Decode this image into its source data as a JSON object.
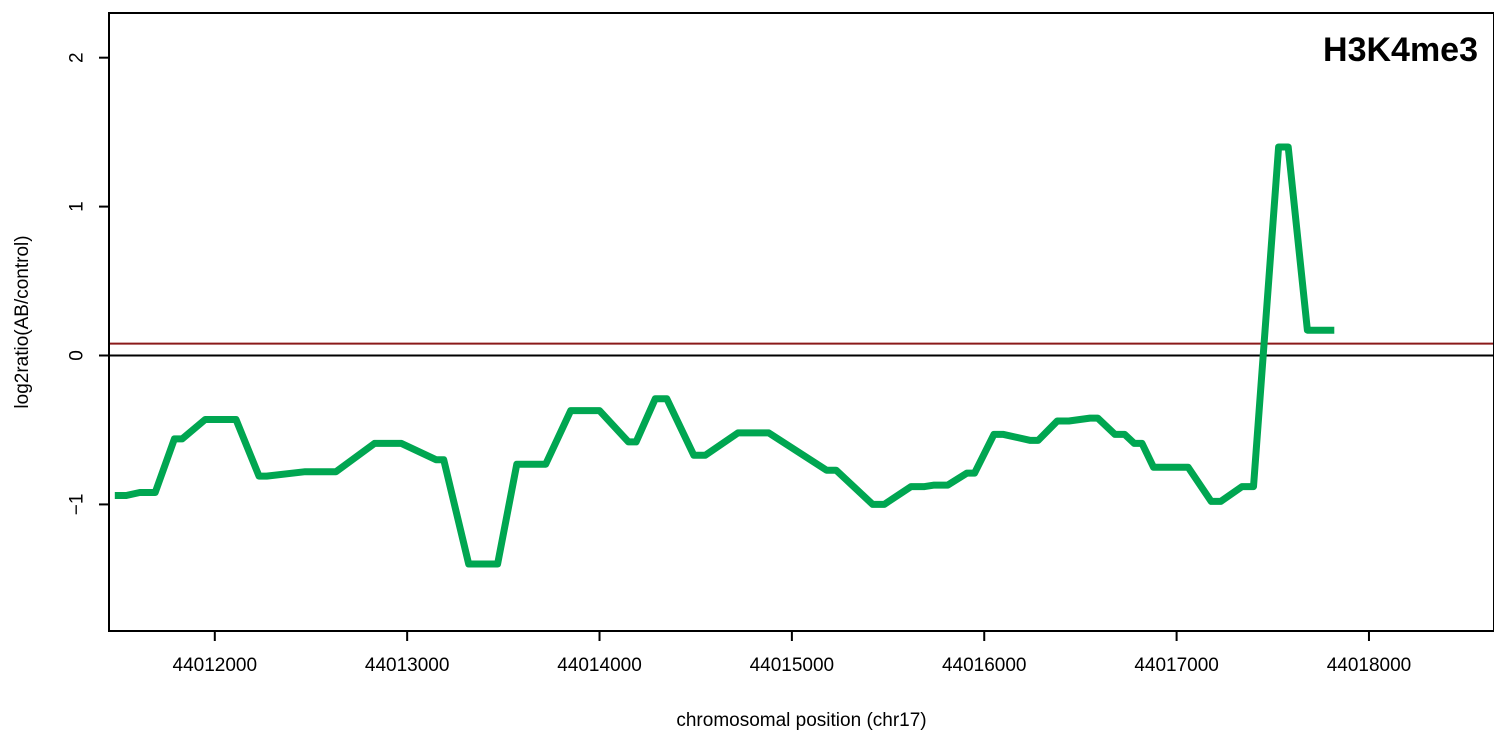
{
  "chart_data": {
    "type": "line",
    "title": "H3K4me3",
    "xlabel": "chromosomal position (chr17)",
    "ylabel": "log2ratio(AB/control)",
    "xlim": [
      44011450,
      44018650
    ],
    "ylim": [
      -1.85,
      2.3
    ],
    "x_ticks": [
      44012000,
      44013000,
      44014000,
      44015000,
      44016000,
      44017000,
      44018000
    ],
    "x_tick_labels": [
      "44012000",
      "44013000",
      "44014000",
      "44015000",
      "44016000",
      "44017000",
      "44018000"
    ],
    "y_ticks": [
      -1,
      0,
      1,
      2
    ],
    "y_tick_labels": [
      "−1",
      "0",
      "1",
      "2"
    ],
    "grid": false,
    "reference_lines": [
      {
        "y": 0,
        "color": "#000000"
      },
      {
        "y": 0.08,
        "color": "#8b1a1a"
      }
    ],
    "series": [
      {
        "color": "#00a651",
        "points": [
          [
            44011480,
            -0.94
          ],
          [
            44011540,
            -0.94
          ],
          [
            44011610,
            -0.92
          ],
          [
            44011690,
            -0.92
          ],
          [
            44011790,
            -0.56
          ],
          [
            44011830,
            -0.56
          ],
          [
            44011950,
            -0.43
          ],
          [
            44012110,
            -0.43
          ],
          [
            44012230,
            -0.81
          ],
          [
            44012270,
            -0.81
          ],
          [
            44012470,
            -0.78
          ],
          [
            44012630,
            -0.78
          ],
          [
            44012830,
            -0.59
          ],
          [
            44012970,
            -0.59
          ],
          [
            44013150,
            -0.7
          ],
          [
            44013190,
            -0.7
          ],
          [
            44013320,
            -1.4
          ],
          [
            44013470,
            -1.4
          ],
          [
            44013570,
            -0.73
          ],
          [
            44013720,
            -0.73
          ],
          [
            44013850,
            -0.37
          ],
          [
            44014000,
            -0.37
          ],
          [
            44014150,
            -0.58
          ],
          [
            44014190,
            -0.58
          ],
          [
            44014290,
            -0.29
          ],
          [
            44014350,
            -0.29
          ],
          [
            44014490,
            -0.67
          ],
          [
            44014550,
            -0.67
          ],
          [
            44014720,
            -0.52
          ],
          [
            44014880,
            -0.52
          ],
          [
            44015180,
            -0.77
          ],
          [
            44015230,
            -0.77
          ],
          [
            44015420,
            -1.0
          ],
          [
            44015480,
            -1.0
          ],
          [
            44015620,
            -0.88
          ],
          [
            44015690,
            -0.88
          ],
          [
            44015740,
            -0.87
          ],
          [
            44015810,
            -0.87
          ],
          [
            44015910,
            -0.79
          ],
          [
            44015950,
            -0.79
          ],
          [
            44016050,
            -0.53
          ],
          [
            44016100,
            -0.53
          ],
          [
            44016240,
            -0.57
          ],
          [
            44016280,
            -0.57
          ],
          [
            44016380,
            -0.44
          ],
          [
            44016440,
            -0.44
          ],
          [
            44016550,
            -0.42
          ],
          [
            44016590,
            -0.42
          ],
          [
            44016680,
            -0.53
          ],
          [
            44016730,
            -0.53
          ],
          [
            44016780,
            -0.59
          ],
          [
            44016820,
            -0.59
          ],
          [
            44016880,
            -0.75
          ],
          [
            44017060,
            -0.75
          ],
          [
            44017180,
            -0.98
          ],
          [
            44017230,
            -0.98
          ],
          [
            44017340,
            -0.88
          ],
          [
            44017400,
            -0.88
          ],
          [
            44017530,
            1.4
          ],
          [
            44017580,
            1.4
          ],
          [
            44017680,
            0.17
          ],
          [
            44017820,
            0.17
          ]
        ]
      }
    ]
  }
}
